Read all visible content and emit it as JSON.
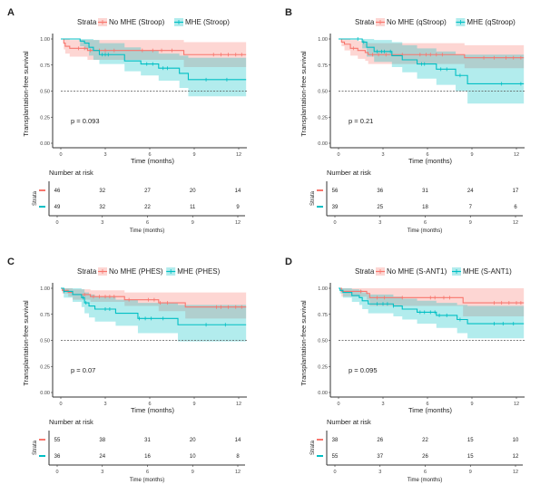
{
  "colors": {
    "no_mhe": "#F8766D",
    "mhe": "#00BFC4",
    "axis": "#333333",
    "median_line": "#555555"
  },
  "chart_data": [
    {
      "type": "line",
      "panel_label": "A",
      "legend_title": "Strata",
      "legend_placement": "top",
      "xlabel": "Time (months)",
      "ylabel": "Transplantation-free survival",
      "xlim": [
        0,
        12.5
      ],
      "ylim": [
        0,
        1
      ],
      "xticks": [
        "0",
        "3",
        "6",
        "9",
        "12"
      ],
      "yticks": [
        "0.00",
        "0.25",
        "0.50",
        "0.75",
        "1.00"
      ],
      "median_line": 0.5,
      "pvalue": "p = 0.093",
      "series": [
        {
          "name": "No MHE (Stroop)",
          "color_key": "no_mhe",
          "steps": [
            [
              0,
              1,
              1,
              1
            ],
            [
              0.2,
              0.96,
              0.9,
              1
            ],
            [
              0.3,
              0.93,
              0.86,
              1
            ],
            [
              0.6,
              0.91,
              0.83,
              0.99
            ],
            [
              1.8,
              0.89,
              0.8,
              0.99
            ],
            [
              8.3,
              0.85,
              0.73,
              0.97
            ]
          ],
          "censored": [
            1.2,
            1.6,
            2.0,
            2.6,
            3.0,
            3.6,
            5.5,
            6.2,
            6.8,
            7.5,
            10.3,
            10.8,
            11.3,
            11.8,
            12.2
          ]
        },
        {
          "name": "MHE (Stroop)",
          "color_key": "mhe",
          "steps": [
            [
              0,
              1,
              1,
              1
            ],
            [
              1.3,
              0.98,
              0.93,
              1
            ],
            [
              1.6,
              0.96,
              0.9,
              1
            ],
            [
              1.9,
              0.92,
              0.84,
              1
            ],
            [
              2.2,
              0.89,
              0.8,
              0.99
            ],
            [
              2.6,
              0.85,
              0.76,
              0.96
            ],
            [
              4.3,
              0.79,
              0.69,
              0.92
            ],
            [
              5.4,
              0.76,
              0.65,
              0.89
            ],
            [
              6.6,
              0.72,
              0.6,
              0.86
            ],
            [
              8.0,
              0.67,
              0.53,
              0.84
            ],
            [
              8.6,
              0.61,
              0.45,
              0.82
            ]
          ],
          "censored": [
            2.8,
            3.0,
            3.2,
            5.8,
            6.2,
            6.9,
            7.2,
            9.8,
            11.2
          ]
        }
      ],
      "risk_table": {
        "title": "Number at risk",
        "ylabel": "Strata",
        "xlabel": "Time (months)",
        "times": [
          "0",
          "3",
          "6",
          "9",
          "12"
        ],
        "rows": [
          {
            "color_key": "no_mhe",
            "values": [
              "46",
              "32",
              "27",
              "20",
              "14"
            ]
          },
          {
            "color_key": "mhe",
            "values": [
              "49",
              "32",
              "22",
              "11",
              "9"
            ]
          }
        ]
      }
    },
    {
      "type": "line",
      "panel_label": "B",
      "legend_title": "Strata",
      "legend_placement": "top",
      "xlabel": "Time (months)",
      "ylabel": "Transplantation-free survival",
      "xlim": [
        0,
        12.5
      ],
      "ylim": [
        0,
        1
      ],
      "xticks": [
        "0",
        "3",
        "6",
        "9",
        "12"
      ],
      "yticks": [
        "0.00",
        "0.25",
        "0.50",
        "0.75",
        "1.00"
      ],
      "median_line": 0.5,
      "pvalue": "p = 0.21",
      "series": [
        {
          "name": "No MHE (qStroop)",
          "color_key": "no_mhe",
          "steps": [
            [
              0,
              1,
              1,
              1
            ],
            [
              0.2,
              0.97,
              0.93,
              1
            ],
            [
              0.4,
              0.95,
              0.89,
              1
            ],
            [
              0.8,
              0.91,
              0.84,
              0.99
            ],
            [
              1.3,
              0.89,
              0.81,
              0.98
            ],
            [
              1.8,
              0.87,
              0.79,
              0.97
            ],
            [
              2.0,
              0.85,
              0.76,
              0.96
            ],
            [
              8.5,
              0.82,
              0.72,
              0.94
            ]
          ],
          "censored": [
            1.0,
            2.3,
            2.7,
            3.2,
            4.3,
            5.5,
            5.9,
            6.2,
            6.6,
            7.0,
            9.8,
            10.5,
            11.3,
            11.8,
            12.3
          ]
        },
        {
          "name": "MHE (qStroop)",
          "color_key": "mhe",
          "steps": [
            [
              0,
              1,
              1,
              1
            ],
            [
              1.6,
              0.97,
              0.91,
              1
            ],
            [
              1.9,
              0.92,
              0.83,
              1
            ],
            [
              2.4,
              0.88,
              0.78,
              0.99
            ],
            [
              3.6,
              0.84,
              0.73,
              0.97
            ],
            [
              4.3,
              0.8,
              0.68,
              0.94
            ],
            [
              5.3,
              0.76,
              0.62,
              0.91
            ],
            [
              6.6,
              0.71,
              0.56,
              0.88
            ],
            [
              7.9,
              0.65,
              0.5,
              0.85
            ],
            [
              8.7,
              0.57,
              0.38,
              0.85
            ]
          ],
          "censored": [
            1.3,
            1.7,
            2.6,
            2.9,
            3.1,
            3.5,
            5.6,
            5.8,
            6.9,
            7.3,
            8.2,
            11.0,
            12.3
          ]
        }
      ],
      "risk_table": {
        "title": "Number at risk",
        "ylabel": "Strata",
        "xlabel": "Time (months)",
        "times": [
          "0",
          "3",
          "6",
          "9",
          "12"
        ],
        "rows": [
          {
            "color_key": "no_mhe",
            "values": [
              "56",
              "36",
              "31",
              "24",
              "17"
            ]
          },
          {
            "color_key": "mhe",
            "values": [
              "39",
              "25",
              "18",
              "7",
              "6"
            ]
          }
        ]
      }
    },
    {
      "type": "line",
      "panel_label": "C",
      "legend_title": "Strata",
      "legend_placement": "top",
      "xlabel": "Time (months)",
      "ylabel": "Transplantation-free survival",
      "xlim": [
        0,
        12.5
      ],
      "ylim": [
        0,
        1
      ],
      "xticks": [
        "0",
        "3",
        "6",
        "9",
        "12"
      ],
      "yticks": [
        "0.00",
        "0.25",
        "0.50",
        "0.75",
        "1.00"
      ],
      "median_line": 0.5,
      "pvalue": "p = 0.07",
      "series": [
        {
          "name": "No MHE (PHES)",
          "color_key": "no_mhe",
          "steps": [
            [
              0,
              1,
              1,
              1
            ],
            [
              0.1,
              0.98,
              0.95,
              1
            ],
            [
              0.5,
              0.96,
              0.92,
              1
            ],
            [
              0.8,
              0.94,
              0.89,
              0.99
            ],
            [
              2.0,
              0.92,
              0.87,
              0.98
            ],
            [
              4.3,
              0.89,
              0.83,
              0.96
            ],
            [
              6.6,
              0.86,
              0.78,
              0.96
            ],
            [
              8.4,
              0.82,
              0.71,
              0.96
            ]
          ],
          "censored": [
            0.2,
            1.6,
            2.2,
            2.6,
            3.0,
            3.3,
            3.6,
            4.6,
            5.9,
            6.3,
            6.7,
            7.2,
            10.5,
            10.8,
            11.3,
            11.8,
            12.2
          ]
        },
        {
          "name": "MHE (PHES)",
          "color_key": "mhe",
          "steps": [
            [
              0,
              1,
              1,
              1
            ],
            [
              0.2,
              0.97,
              0.91,
              1
            ],
            [
              0.8,
              0.94,
              0.87,
              1
            ],
            [
              1.4,
              0.91,
              0.82,
              0.99
            ],
            [
              1.6,
              0.86,
              0.76,
              0.96
            ],
            [
              1.9,
              0.83,
              0.72,
              0.94
            ],
            [
              2.3,
              0.8,
              0.68,
              0.92
            ],
            [
              3.7,
              0.76,
              0.64,
              0.89
            ],
            [
              5.2,
              0.71,
              0.57,
              0.86
            ],
            [
              7.9,
              0.65,
              0.49,
              0.84
            ]
          ],
          "censored": [
            0.2,
            1.5,
            1.7,
            3.0,
            3.3,
            5.3,
            5.7,
            6.1,
            6.9,
            9.8,
            11.1
          ]
        }
      ],
      "risk_table": {
        "title": "Number at risk",
        "ylabel": "Strata",
        "xlabel": "Time (months)",
        "times": [
          "0",
          "3",
          "6",
          "9",
          "12"
        ],
        "rows": [
          {
            "color_key": "no_mhe",
            "values": [
              "55",
              "38",
              "31",
              "20",
              "14"
            ]
          },
          {
            "color_key": "mhe",
            "values": [
              "36",
              "24",
              "16",
              "10",
              "8"
            ]
          }
        ]
      }
    },
    {
      "type": "line",
      "panel_label": "D",
      "legend_title": "Strata",
      "legend_placement": "top",
      "xlabel": "Time (months)",
      "ylabel": "Transplantation-free survival",
      "xlim": [
        0,
        12.5
      ],
      "ylim": [
        0,
        1
      ],
      "xticks": [
        "0",
        "3",
        "6",
        "9",
        "12"
      ],
      "yticks": [
        "0.00",
        "0.25",
        "0.50",
        "0.75",
        "1.00"
      ],
      "median_line": 0.5,
      "pvalue": "p = 0.095",
      "series": [
        {
          "name": "No MHE (S-ANT1)",
          "color_key": "no_mhe",
          "steps": [
            [
              0,
              1,
              1,
              1
            ],
            [
              0.2,
              0.97,
              0.92,
              1
            ],
            [
              1.9,
              0.95,
              0.89,
              1
            ],
            [
              2.1,
              0.91,
              0.83,
              1
            ],
            [
              8.4,
              0.86,
              0.73,
              1
            ]
          ],
          "censored": [
            1.5,
            2.6,
            3.1,
            4.3,
            6.2,
            6.5,
            7.1,
            7.5,
            10.5,
            11.0,
            11.5,
            12.0,
            12.3
          ]
        },
        {
          "name": "MHE (S-ANT1)",
          "color_key": "mhe",
          "steps": [
            [
              0,
              1,
              1,
              1
            ],
            [
              0.1,
              0.98,
              0.95,
              1
            ],
            [
              0.3,
              0.96,
              0.91,
              1
            ],
            [
              0.9,
              0.93,
              0.87,
              0.99
            ],
            [
              1.4,
              0.91,
              0.84,
              0.98
            ],
            [
              1.6,
              0.88,
              0.8,
              0.96
            ],
            [
              2.0,
              0.85,
              0.76,
              0.94
            ],
            [
              3.7,
              0.83,
              0.73,
              0.92
            ],
            [
              4.3,
              0.8,
              0.7,
              0.9
            ],
            [
              5.3,
              0.77,
              0.66,
              0.88
            ],
            [
              6.6,
              0.74,
              0.62,
              0.86
            ],
            [
              8.0,
              0.7,
              0.57,
              0.84
            ],
            [
              8.7,
              0.66,
              0.52,
              0.83
            ]
          ],
          "censored": [
            2.6,
            3.0,
            3.3,
            3.7,
            5.5,
            5.8,
            6.2,
            6.5,
            6.8,
            7.3,
            8.2,
            10.5,
            11.1,
            11.8
          ]
        }
      ],
      "risk_table": {
        "title": "Number at risk",
        "ylabel": "Strata",
        "xlabel": "Time (months)",
        "times": [
          "0",
          "3",
          "6",
          "9",
          "12"
        ],
        "rows": [
          {
            "color_key": "no_mhe",
            "values": [
              "38",
              "26",
              "22",
              "15",
              "10"
            ]
          },
          {
            "color_key": "mhe",
            "values": [
              "55",
              "37",
              "26",
              "15",
              "12"
            ]
          }
        ]
      }
    }
  ]
}
